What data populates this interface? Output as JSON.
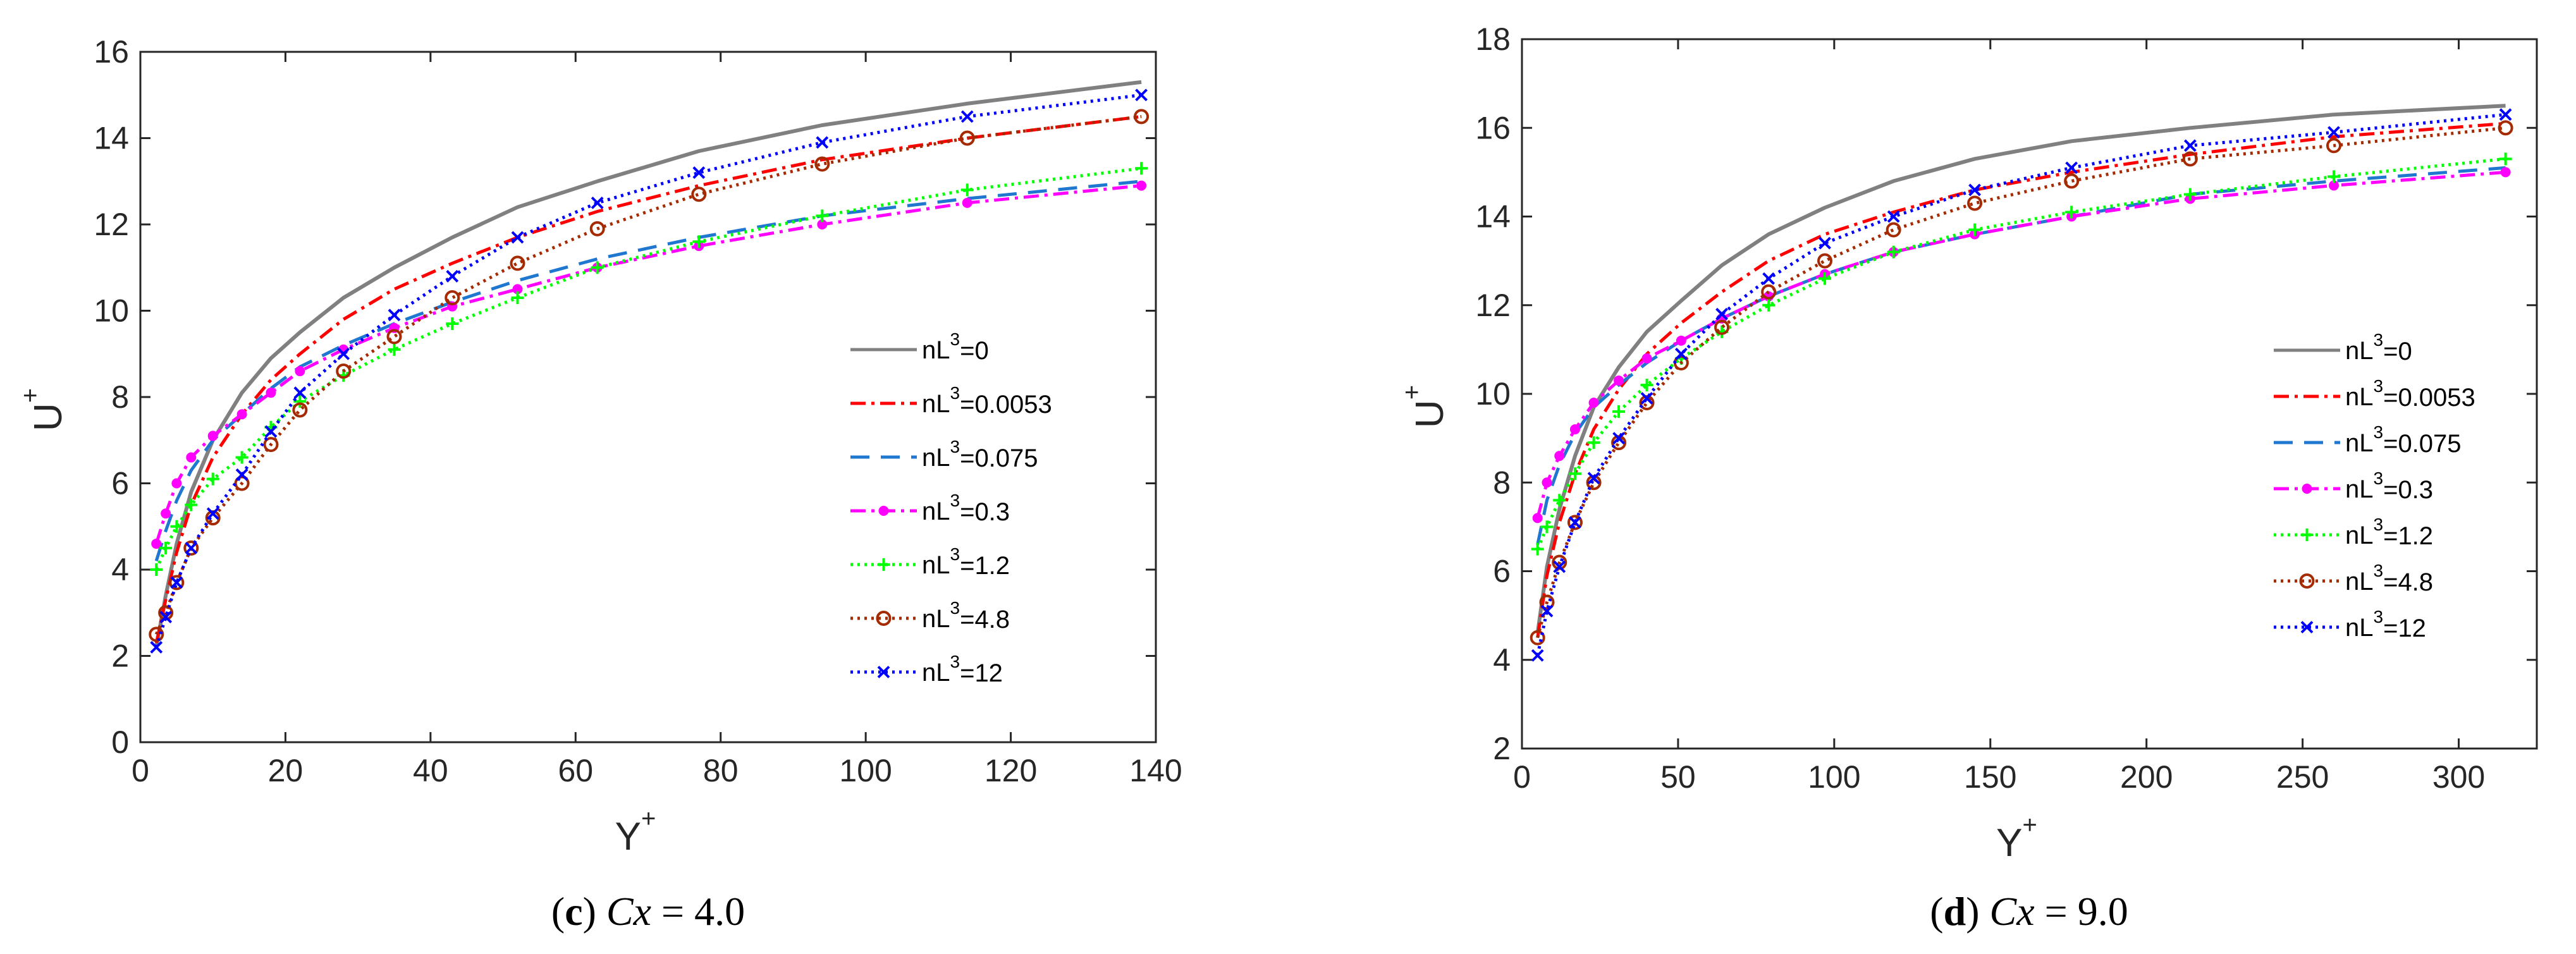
{
  "chart_data": [
    {
      "type": "line",
      "panel": "c",
      "caption": {
        "letter": "c",
        "var": "Cx",
        "rest": " = 4.0"
      },
      "xlabel": {
        "base": "Y",
        "sup": "+"
      },
      "ylabel": {
        "base": "U",
        "sup": "+"
      },
      "xlim": [
        0,
        140
      ],
      "ylim": [
        0,
        16
      ],
      "xticks": [
        0,
        20,
        40,
        60,
        80,
        100,
        120,
        140
      ],
      "yticks": [
        0,
        2,
        4,
        6,
        8,
        10,
        12,
        14,
        16
      ],
      "grid": false,
      "legend_position": "lower-right",
      "series": [
        {
          "name": "nL³=0",
          "label_base": "nL",
          "label_exp": "3",
          "label_rest": "=0",
          "color": "#808080",
          "dash": "",
          "marker": "none",
          "x": [
            2.2,
            3.5,
            5,
            7,
            10,
            14,
            18,
            22,
            28,
            35,
            43,
            52,
            63,
            77,
            94,
            114,
            138
          ],
          "y": [
            2.2,
            3.4,
            4.6,
            5.8,
            7.0,
            8.1,
            8.9,
            9.5,
            10.3,
            11.0,
            11.7,
            12.4,
            13.0,
            13.7,
            14.3,
            14.8,
            15.3
          ]
        },
        {
          "name": "nL³=0.0053",
          "label_base": "nL",
          "label_exp": "3",
          "label_rest": "=0.0053",
          "color": "#ff0000",
          "dash": "24 9 5 9",
          "marker": "none",
          "x": [
            2.2,
            3.5,
            5,
            7,
            10,
            14,
            18,
            22,
            28,
            35,
            43,
            52,
            63,
            77,
            94,
            114,
            138
          ],
          "y": [
            2.3,
            3.3,
            4.4,
            5.5,
            6.6,
            7.6,
            8.4,
            9.0,
            9.8,
            10.5,
            11.1,
            11.7,
            12.3,
            12.9,
            13.5,
            14.0,
            14.5
          ]
        },
        {
          "name": "nL³=0.075",
          "label_base": "nL",
          "label_exp": "3",
          "label_rest": "=0.075",
          "color": "#1f77d0",
          "dash": "30 18",
          "marker": "none",
          "x": [
            2.2,
            3.5,
            5,
            7,
            10,
            14,
            18,
            22,
            28,
            35,
            43,
            52,
            63,
            77,
            94,
            114,
            138
          ],
          "y": [
            4.2,
            4.9,
            5.6,
            6.3,
            7.0,
            7.6,
            8.2,
            8.7,
            9.2,
            9.7,
            10.2,
            10.7,
            11.2,
            11.7,
            12.2,
            12.6,
            13.0
          ]
        },
        {
          "name": "nL³=0.3",
          "label_base": "nL",
          "label_exp": "3",
          "label_rest": "=0.3",
          "color": "#ff00ff",
          "dash": "24 9 5 9",
          "marker": "dot",
          "x": [
            2.2,
            3.5,
            5,
            7,
            10,
            14,
            18,
            22,
            28,
            35,
            43,
            52,
            63,
            77,
            94,
            114,
            138
          ],
          "y": [
            4.6,
            5.3,
            6.0,
            6.6,
            7.1,
            7.6,
            8.1,
            8.6,
            9.1,
            9.6,
            10.1,
            10.5,
            11.0,
            11.5,
            12.0,
            12.5,
            12.9
          ]
        },
        {
          "name": "nL³=1.2",
          "label_base": "nL",
          "label_exp": "3",
          "label_rest": "=1.2",
          "color": "#00ff00",
          "dash": "4 7",
          "marker": "plus",
          "x": [
            2.2,
            3.5,
            5,
            7,
            10,
            14,
            18,
            22,
            28,
            35,
            43,
            52,
            63,
            77,
            94,
            114,
            138
          ],
          "y": [
            4.0,
            4.5,
            5.0,
            5.5,
            6.1,
            6.6,
            7.3,
            7.9,
            8.5,
            9.1,
            9.7,
            10.3,
            11.0,
            11.6,
            12.2,
            12.8,
            13.3
          ]
        },
        {
          "name": "nL³=4.8",
          "label_base": "nL",
          "label_exp": "3",
          "label_rest": "=4.8",
          "color": "#a52a00",
          "dash": "4 7",
          "marker": "circle",
          "x": [
            2.2,
            3.5,
            5,
            7,
            10,
            14,
            18,
            22,
            28,
            35,
            43,
            52,
            63,
            77,
            94,
            114,
            138
          ],
          "y": [
            2.5,
            3.0,
            3.7,
            4.5,
            5.2,
            6.0,
            6.9,
            7.7,
            8.6,
            9.4,
            10.3,
            11.1,
            11.9,
            12.7,
            13.4,
            14.0,
            14.5
          ]
        },
        {
          "name": "nL³=12",
          "label_base": "nL",
          "label_exp": "3",
          "label_rest": "=12",
          "color": "#0000ff",
          "dash": "4 7",
          "marker": "x",
          "x": [
            2.2,
            3.5,
            5,
            7,
            10,
            14,
            18,
            22,
            28,
            35,
            43,
            52,
            63,
            77,
            94,
            114,
            138
          ],
          "y": [
            2.2,
            2.9,
            3.7,
            4.5,
            5.3,
            6.2,
            7.2,
            8.1,
            9.0,
            9.9,
            10.8,
            11.7,
            12.5,
            13.2,
            13.9,
            14.5,
            15.0
          ]
        }
      ]
    },
    {
      "type": "line",
      "panel": "d",
      "caption": {
        "letter": "d",
        "var": "Cx",
        "rest": " = 9.0"
      },
      "xlabel": {
        "base": "Y",
        "sup": "+"
      },
      "ylabel": {
        "base": "U",
        "sup": "+"
      },
      "xlim": [
        0,
        325
      ],
      "ylim": [
        2,
        18
      ],
      "xticks": [
        0,
        50,
        100,
        150,
        200,
        250,
        300
      ],
      "yticks": [
        2,
        4,
        6,
        8,
        10,
        12,
        14,
        16,
        18
      ],
      "grid": false,
      "legend_position": "lower-right",
      "series": [
        {
          "name": "nL³=0",
          "label_base": "nL",
          "label_exp": "3",
          "label_rest": "=0",
          "color": "#808080",
          "dash": "",
          "marker": "none",
          "x": [
            5,
            8,
            12,
            17,
            23,
            31,
            40,
            51,
            64,
            79,
            97,
            119,
            145,
            176,
            214,
            260,
            315
          ],
          "y": [
            4.6,
            6.1,
            7.4,
            8.6,
            9.7,
            10.6,
            11.4,
            12.1,
            12.9,
            13.6,
            14.2,
            14.8,
            15.3,
            15.7,
            16.0,
            16.3,
            16.5
          ]
        },
        {
          "name": "nL³=0.0053",
          "label_base": "nL",
          "label_exp": "3",
          "label_rest": "=0.0053",
          "color": "#ff0000",
          "dash": "24 9 5 9",
          "marker": "none",
          "x": [
            5,
            8,
            12,
            17,
            23,
            31,
            40,
            51,
            64,
            79,
            97,
            119,
            145,
            176,
            214,
            260,
            315
          ],
          "y": [
            4.5,
            5.9,
            7.1,
            8.2,
            9.2,
            10.1,
            10.9,
            11.6,
            12.3,
            13.0,
            13.6,
            14.1,
            14.6,
            15.0,
            15.4,
            15.8,
            16.1
          ]
        },
        {
          "name": "nL³=0.075",
          "label_base": "nL",
          "label_exp": "3",
          "label_rest": "=0.075",
          "color": "#1f77d0",
          "dash": "30 18",
          "marker": "none",
          "x": [
            5,
            8,
            12,
            17,
            23,
            31,
            40,
            51,
            64,
            79,
            97,
            119,
            145,
            176,
            214,
            260,
            315
          ],
          "y": [
            6.6,
            7.6,
            8.4,
            9.1,
            9.7,
            10.2,
            10.7,
            11.2,
            11.7,
            12.2,
            12.7,
            13.2,
            13.6,
            14.0,
            14.5,
            14.8,
            15.1
          ]
        },
        {
          "name": "nL³=0.3",
          "label_base": "nL",
          "label_exp": "3",
          "label_rest": "=0.3",
          "color": "#ff00ff",
          "dash": "24 9 5 9",
          "marker": "dot",
          "x": [
            5,
            8,
            12,
            17,
            23,
            31,
            40,
            51,
            64,
            79,
            97,
            119,
            145,
            176,
            214,
            260,
            315
          ],
          "y": [
            7.2,
            8.0,
            8.6,
            9.2,
            9.8,
            10.3,
            10.8,
            11.2,
            11.7,
            12.2,
            12.7,
            13.2,
            13.6,
            14.0,
            14.4,
            14.7,
            15.0
          ]
        },
        {
          "name": "nL³=1.2",
          "label_base": "nL",
          "label_exp": "3",
          "label_rest": "=1.2",
          "color": "#00ff00",
          "dash": "4 7",
          "marker": "plus",
          "x": [
            5,
            8,
            12,
            17,
            23,
            31,
            40,
            51,
            64,
            79,
            97,
            119,
            145,
            176,
            214,
            260,
            315
          ],
          "y": [
            6.5,
            7.0,
            7.6,
            8.2,
            8.9,
            9.6,
            10.2,
            10.8,
            11.4,
            12.0,
            12.6,
            13.2,
            13.7,
            14.1,
            14.5,
            14.9,
            15.3
          ]
        },
        {
          "name": "nL³=4.8",
          "label_base": "nL",
          "label_exp": "3",
          "label_rest": "=4.8",
          "color": "#a52a00",
          "dash": "4 7",
          "marker": "circle",
          "x": [
            5,
            8,
            12,
            17,
            23,
            31,
            40,
            51,
            64,
            79,
            97,
            119,
            145,
            176,
            214,
            260,
            315
          ],
          "y": [
            4.5,
            5.3,
            6.2,
            7.1,
            8.0,
            8.9,
            9.8,
            10.7,
            11.5,
            12.3,
            13.0,
            13.7,
            14.3,
            14.8,
            15.3,
            15.6,
            16.0
          ]
        },
        {
          "name": "nL³=12",
          "label_base": "nL",
          "label_exp": "3",
          "label_rest": "=12",
          "color": "#0000ff",
          "dash": "4 7",
          "marker": "x",
          "x": [
            5,
            8,
            12,
            17,
            23,
            31,
            40,
            51,
            64,
            79,
            97,
            119,
            145,
            176,
            214,
            260,
            315
          ],
          "y": [
            4.1,
            5.1,
            6.1,
            7.1,
            8.1,
            9.0,
            9.9,
            10.9,
            11.8,
            12.6,
            13.4,
            14.0,
            14.6,
            15.1,
            15.6,
            15.9,
            16.3
          ]
        }
      ]
    }
  ]
}
